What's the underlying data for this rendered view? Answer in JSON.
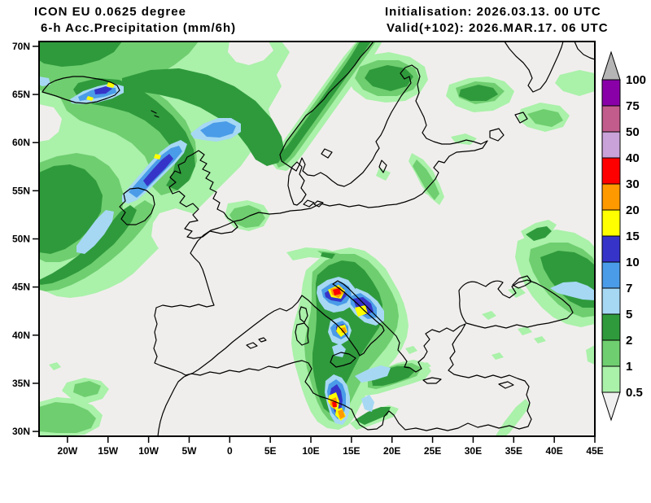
{
  "header": {
    "model": "ICON EU 0.0625 degree",
    "product": "6-h Acc.Precipitation (mm/6h)",
    "initialisation": "Initialisation: 2026.03.13. 00 UTC",
    "valid": "Valid(+102): 2026.MAR.17. 06 UTC"
  },
  "axes": {
    "lat_labels": [
      "70N",
      "65N",
      "60N",
      "55N",
      "50N",
      "45N",
      "40N",
      "35N",
      "30N"
    ],
    "lon_labels": [
      "20W",
      "15W",
      "10W",
      "5W",
      "0",
      "5E",
      "10E",
      "15E",
      "20E",
      "25E",
      "30E",
      "35E",
      "40E",
      "45E"
    ]
  },
  "colorbar": {
    "boundary_labels_top_to_bottom": [
      "100",
      "75",
      "50",
      "40",
      "30",
      "20",
      "15",
      "10",
      "7",
      "5",
      "2",
      "1",
      "0.5"
    ],
    "block_colors_top_to_bottom": [
      "#8a00a8",
      "#c25c8c",
      "#c8a2d8",
      "#ff0000",
      "#ff9900",
      "#ffff00",
      "#3634c8",
      "#4a9ce8",
      "#a6d8f4",
      "#2f9a3c",
      "#6fce6f",
      "#aaf1aa"
    ],
    "over_arrow_color": "#b5b5b5",
    "under_arrow_color": "#f0f0f0"
  },
  "map_colors": {
    "background": "#f0eeec",
    "coastline": "#000000"
  }
}
